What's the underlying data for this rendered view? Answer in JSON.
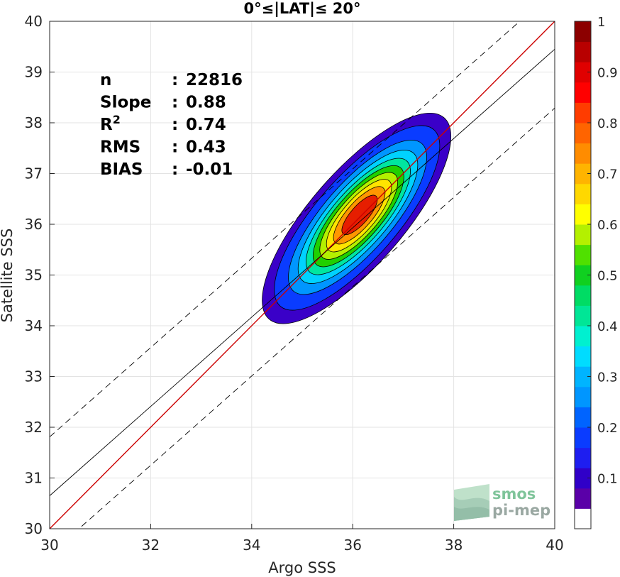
{
  "chart_data": {
    "type": "heatmap",
    "title": "0°≤|LAT|≤ 20°",
    "xlabel": "Argo SSS",
    "ylabel": "Satellite SSS",
    "xlim": [
      30,
      40
    ],
    "ylim": [
      30,
      40
    ],
    "x_ticks": [
      "30",
      "32",
      "34",
      "36",
      "38",
      "40"
    ],
    "y_ticks": [
      "30",
      "31",
      "32",
      "33",
      "34",
      "35",
      "36",
      "37",
      "38",
      "39",
      "40"
    ],
    "grid": true,
    "stats": [
      {
        "label": "n",
        "sep": ": ",
        "value": "22816"
      },
      {
        "label": "Slope",
        "sep": ": ",
        "value": "0.88"
      },
      {
        "label": "R",
        "sup": "2",
        "sep": ": ",
        "value": "0.74"
      },
      {
        "label": "RMS",
        "sep": ": ",
        "value": "0.43"
      },
      {
        "label": "BIAS",
        "sep": ": ",
        "value": "-0.01"
      }
    ],
    "identity_line": {
      "color": "#cc0000",
      "slope": 1,
      "intercept": 0
    },
    "regression_line": {
      "color": "#000000",
      "slope": 0.88,
      "intercept_at_30": 30.65
    },
    "confidence_lines_offset": 1.16,
    "density": {
      "center": [
        36.15,
        36.2
      ],
      "levels": [
        0.05,
        0.1,
        0.2,
        0.3,
        0.4,
        0.5,
        0.6,
        0.7,
        0.8,
        0.9
      ],
      "level_colors": [
        "#3a00c8",
        "#0a3cff",
        "#0096ff",
        "#00d2ff",
        "#00e6a0",
        "#20d000",
        "#b4f000",
        "#ffe400",
        "#ff9600",
        "#e61e00"
      ]
    },
    "colorbar": {
      "ticks": [
        "0.1",
        "0.2",
        "0.3",
        "0.4",
        "0.5",
        "0.6",
        "0.7",
        "0.8",
        "0.9",
        "1"
      ],
      "range": [
        0,
        1
      ]
    }
  },
  "watermark": {
    "line1": "smos",
    "line2": "pi-mep"
  }
}
